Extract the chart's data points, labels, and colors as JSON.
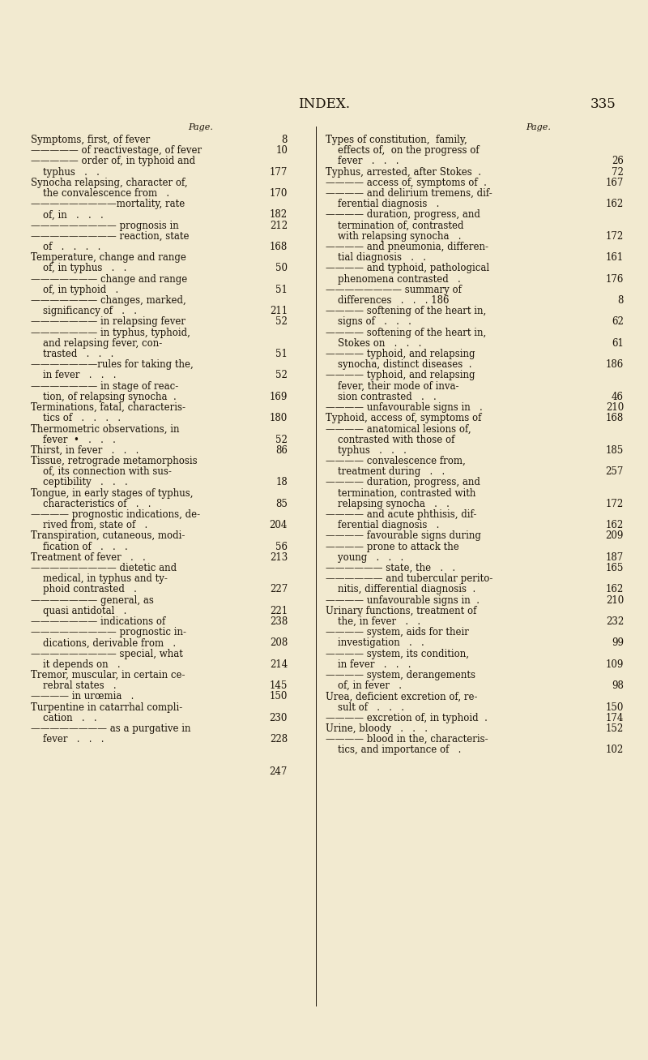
{
  "bg_color": "#f2ead0",
  "title": "INDEX.",
  "page_number": "335",
  "left_col": [
    [
      "Symptoms, first, of fever",
      ".",
      "8"
    ],
    [
      "————— of reactivestage, of fever",
      "",
      "10"
    ],
    [
      "————— order of, in typhoid and",
      "",
      ""
    ],
    [
      "    typhus   .   .",
      "",
      "177"
    ],
    [
      "Synocha relapsing, character of,",
      "",
      ""
    ],
    [
      "    the convalescence from   .",
      "",
      "170"
    ],
    [
      "—————————mortality, rate",
      "",
      ""
    ],
    [
      "    of, in   .   .   .",
      "",
      "182"
    ],
    [
      "————————— prognosis in",
      "",
      "212"
    ],
    [
      "————————— reaction, state",
      "",
      ""
    ],
    [
      "    of   .   .   .   .",
      "",
      "168"
    ],
    [
      "Temperature, change and range",
      "",
      ""
    ],
    [
      "    of, in typhus   .   .",
      "",
      "50"
    ],
    [
      "——————— change and range",
      "",
      ""
    ],
    [
      "    of, in typhoid   .",
      "",
      "51"
    ],
    [
      "——————— changes, marked,",
      "",
      ""
    ],
    [
      "    significancy of   .   .",
      "",
      "211"
    ],
    [
      "——————— in relapsing fever",
      "",
      "52"
    ],
    [
      "——————— in typhus, typhoid,",
      "",
      ""
    ],
    [
      "    and relapsing fever, con-",
      "",
      ""
    ],
    [
      "    trasted   .   .   .",
      "",
      "51"
    ],
    [
      "———————rules for taking the,",
      "",
      ""
    ],
    [
      "    in fever   .   .   .",
      "",
      "52"
    ],
    [
      "——————— in stage of reac-",
      "",
      ""
    ],
    [
      "    tion, of relapsing synocha  .",
      "",
      "169"
    ],
    [
      "Terminations, fatal, characteris-",
      "",
      ""
    ],
    [
      "    tics of   .   .   .   .",
      "",
      "180"
    ],
    [
      "Thermometric observations, in",
      "",
      ""
    ],
    [
      "    fever  •   .   .   .",
      "",
      "52"
    ],
    [
      "Thirst, in fever   .   .   .",
      "",
      "86"
    ],
    [
      "Tissue, retrograde metamorphosis",
      "",
      ""
    ],
    [
      "    of, its connection with sus-",
      "",
      ""
    ],
    [
      "    ceptibility   .   .   .",
      "",
      "18"
    ],
    [
      "Tongue, in early stages of typhus,",
      "",
      ""
    ],
    [
      "    characteristics of   .   .",
      "",
      "85"
    ],
    [
      "———— prognostic indications, de-",
      "",
      ""
    ],
    [
      "    rived from, state of   .",
      "",
      "204"
    ],
    [
      "Transpiration, cutaneous, modi-",
      "",
      ""
    ],
    [
      "    fication of   .   .   .",
      "",
      "56"
    ],
    [
      "Treatment of fever   .   .",
      "",
      "213"
    ],
    [
      "————————— dietetic and",
      "",
      ""
    ],
    [
      "    medical, in typhus and ty-",
      "",
      ""
    ],
    [
      "    phoid contrasted   .",
      "",
      "227"
    ],
    [
      "——————— general, as",
      "",
      ""
    ],
    [
      "    quasi antidotal   .",
      "",
      "221"
    ],
    [
      "——————— indications of",
      "",
      "238"
    ],
    [
      "————————— prognostic in-",
      "",
      ""
    ],
    [
      "    dications, derivable from   .",
      "",
      "208"
    ],
    [
      "————————— special, what",
      "",
      ""
    ],
    [
      "    it depends on   .",
      "",
      "214"
    ],
    [
      "Tremor, muscular, in certain ce-",
      "",
      ""
    ],
    [
      "    rebral states   .",
      "",
      "145"
    ],
    [
      "———— in urœmia   .",
      "",
      "150"
    ],
    [
      "Turpentine in catarrhal compli-",
      "",
      ""
    ],
    [
      "    cation   .   .",
      "",
      "230"
    ],
    [
      "———————— as a purgative in",
      "",
      ""
    ],
    [
      "    fever   .   .   .",
      "",
      "228"
    ],
    [
      "",
      "",
      ""
    ],
    [
      "",
      "",
      ""
    ],
    [
      "",
      "",
      "247"
    ]
  ],
  "right_col": [
    [
      "Types of constitution,  family,",
      "",
      ""
    ],
    [
      "    effects of,  on the progress of",
      "",
      ""
    ],
    [
      "    fever   .   .   .",
      "",
      "26"
    ],
    [
      "Typhus, arrested, after Stokes  .",
      "",
      "72"
    ],
    [
      "———— access of, symptoms of  .",
      "",
      "167"
    ],
    [
      "———— and delirium tremens, dif-",
      "",
      ""
    ],
    [
      "    ferential diagnosis   .",
      "",
      "162"
    ],
    [
      "———— duration, progress, and",
      "",
      ""
    ],
    [
      "    termination of, contrasted",
      "",
      ""
    ],
    [
      "    with relapsing synocha   .",
      "",
      "172"
    ],
    [
      "———— and pneumonia, differen-",
      "",
      ""
    ],
    [
      "    tial diagnosis   .   .",
      "",
      "161"
    ],
    [
      "———— and typhoid, pathological",
      "",
      ""
    ],
    [
      "    phenomena contrasted   .",
      "",
      "176"
    ],
    [
      "———————— summary of",
      "",
      ""
    ],
    [
      "    differences   .   .   . 186",
      "",
      "8"
    ],
    [
      "———— softening of the heart in,",
      "",
      ""
    ],
    [
      "    signs of   .   .   .",
      "",
      "62"
    ],
    [
      "———— softening of the heart in,",
      "",
      ""
    ],
    [
      "    Stokes on   .   .   .",
      "",
      "61"
    ],
    [
      "———— typhoid, and relapsing",
      "",
      ""
    ],
    [
      "    synocha, distinct diseases  .",
      "",
      "186"
    ],
    [
      "———— typhoid, and relapsing",
      "",
      ""
    ],
    [
      "    fever, their mode of inva-",
      "",
      ""
    ],
    [
      "    sion contrasted   .   .",
      "",
      "46"
    ],
    [
      "———— unfavourable signs in   .",
      "",
      "210"
    ],
    [
      "Typhoid, access of, symptoms of",
      "",
      "168"
    ],
    [
      "———— anatomical lesions of,",
      "",
      ""
    ],
    [
      "    contrasted with those of",
      "",
      ""
    ],
    [
      "    typhus   .   .   .",
      "",
      "185"
    ],
    [
      "———— convalescence from,",
      "",
      ""
    ],
    [
      "    treatment during   .   .",
      "",
      "257"
    ],
    [
      "———— duration, progress, and",
      "",
      ""
    ],
    [
      "    termination, contrasted with",
      "",
      ""
    ],
    [
      "    relapsing synocha   .   .",
      "",
      "172"
    ],
    [
      "———— and acute phthisis, dif-",
      "",
      ""
    ],
    [
      "    ferential diagnosis   .",
      "",
      "162"
    ],
    [
      "———— favourable signs during",
      "",
      "209"
    ],
    [
      "———— prone to attack the",
      "",
      ""
    ],
    [
      "    young   .   .   .",
      "",
      "187"
    ],
    [
      "—————— state, the   .   .",
      "",
      "165"
    ],
    [
      "—————— and tubercular perito-",
      "",
      ""
    ],
    [
      "    nitis, differential diagnosis  .",
      "",
      "162"
    ],
    [
      "———— unfavourable signs in  .",
      "",
      "210"
    ],
    [
      "Urinary functions, treatment of",
      "",
      ""
    ],
    [
      "    the, in fever   .   .",
      "",
      "232"
    ],
    [
      "———— system, aids for their",
      "",
      ""
    ],
    [
      "    investigation   .   .",
      "",
      "99"
    ],
    [
      "———— system, its condition,",
      "",
      ""
    ],
    [
      "    in fever   .   .   .",
      "",
      "109"
    ],
    [
      "———— system, derangements",
      "",
      ""
    ],
    [
      "    of, in fever   .",
      "",
      "98"
    ],
    [
      "Urea, deficient excretion of, re-",
      "",
      ""
    ],
    [
      "    sult of   .   .   .",
      "",
      "150"
    ],
    [
      "———— excretion of, in typhoid  .",
      "",
      "174"
    ],
    [
      "Urine, bloody   .   .   .",
      "",
      "152"
    ],
    [
      "———— blood in the, characteris-",
      "",
      ""
    ],
    [
      "    tics, and importance of   .",
      "",
      "102"
    ]
  ],
  "font_size": 8.5,
  "title_font_size": 12,
  "text_color": "#1a1208",
  "bg_color_hex": "#f2ead0"
}
